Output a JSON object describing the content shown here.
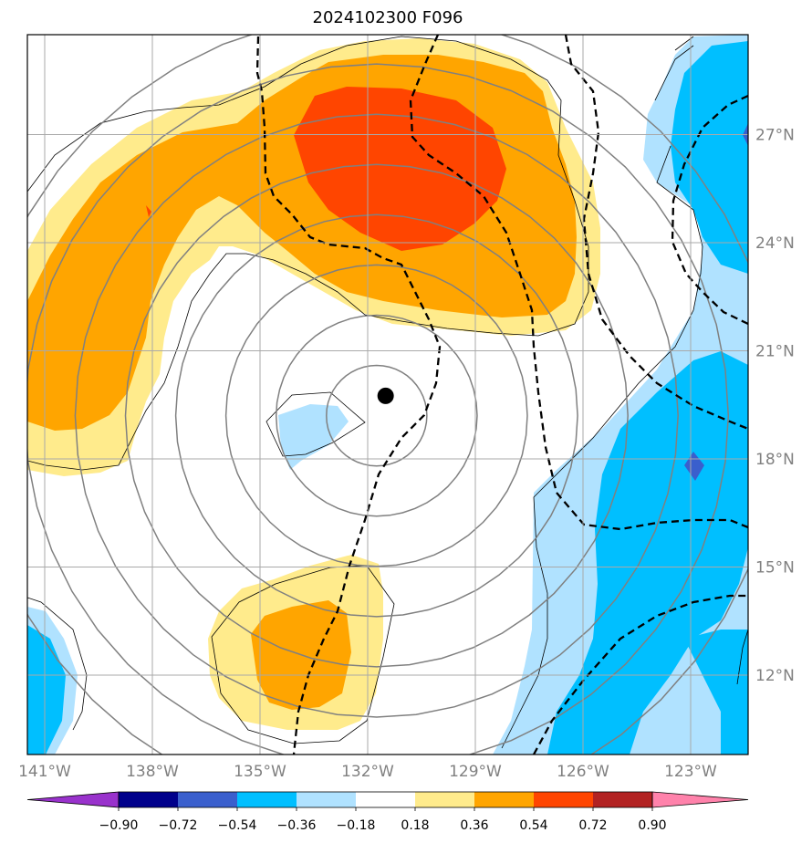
{
  "chart_data": {
    "type": "heatmap",
    "title": "2024102300 F096",
    "map_extent": {
      "lon": [
        -141,
        -120.5
      ],
      "lat": [
        9.8,
        29.6
      ]
    },
    "center_marker": {
      "lon": -131.5,
      "lat": 19.75
    },
    "lat_ticks": [
      {
        "value": 27,
        "label": "27°N"
      },
      {
        "value": 24,
        "label": "24°N"
      },
      {
        "value": 21,
        "label": "21°N"
      },
      {
        "value": 18,
        "label": "18°N"
      },
      {
        "value": 15,
        "label": "15°N"
      },
      {
        "value": 12,
        "label": "12°N"
      }
    ],
    "lon_ticks": [
      {
        "value": -141,
        "label": "141°W"
      },
      {
        "value": -138,
        "label": "138°W"
      },
      {
        "value": -135,
        "label": "135°W"
      },
      {
        "value": -132,
        "label": "132°W"
      },
      {
        "value": -129,
        "label": "129°W"
      },
      {
        "value": -126,
        "label": "126°W"
      },
      {
        "value": -123,
        "label": "123°W"
      }
    ],
    "colorbar": {
      "levels": [
        -0.9,
        -0.72,
        -0.54,
        -0.36,
        -0.18,
        0.18,
        0.36,
        0.54,
        0.72,
        0.9
      ],
      "tick_labels": [
        "−0.90",
        "−0.72",
        "−0.54",
        "−0.36",
        "−0.18",
        "0.18",
        "0.36",
        "0.54",
        "0.72",
        "0.90"
      ],
      "colors": [
        "#9932cc",
        "#00008b",
        "#3a5fcd",
        "#00bfff",
        "#b0e2ff",
        "#ffffff",
        "#ffeb8c",
        "#ffa500",
        "#ff4500",
        "#b22222",
        "#ff82ab"
      ],
      "extend": "both"
    },
    "range_rings_deg": [
      1,
      2,
      3,
      4,
      5,
      6,
      7,
      8
    ],
    "contour_style": "dashed"
  }
}
